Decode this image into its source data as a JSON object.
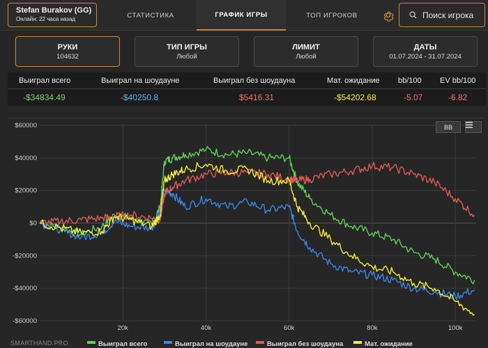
{
  "profile": {
    "name": "Stefan Burakov (GG)",
    "online": "Онлайн: 22 часа назад"
  },
  "tabs": [
    {
      "label": "СТАТИСТИКА",
      "active": false
    },
    {
      "label": "ГРАФИК ИГРЫ",
      "active": true
    },
    {
      "label": "ТОП ИГРОКОВ",
      "active": false
    }
  ],
  "search": {
    "label": "Поиск игрока"
  },
  "filters": [
    {
      "title": "РУКИ",
      "value": "104632"
    },
    {
      "title": "ТИП ИГРЫ",
      "value": "Любой"
    },
    {
      "title": "ЛИМИТ",
      "value": "Любой"
    },
    {
      "title": "ДАТЫ",
      "value": "01.07.2024 - 31.07.2024"
    }
  ],
  "stats": {
    "headers": [
      "Выиграл всего",
      "Выиграл на шоудауне",
      "Выиграл без шоудауна",
      "Мат. ожидание",
      "bb/100",
      "EV bb/100"
    ],
    "values": [
      "-$34834.49",
      "-$40250.8",
      "$5416.31",
      "-$54202.68",
      "-5.07",
      "-6.82"
    ],
    "colors": [
      "#7fd36a",
      "#5ab0ff",
      "#ff6b6b",
      "#f6ee4a",
      "#ff6b6b",
      "#ff6b6b"
    ]
  },
  "chart_buttons": {
    "bb": "BB",
    "menu": "menu-icon"
  },
  "watermark": "SMARTHAND.PRO",
  "chart_data": {
    "type": "line",
    "xlim": [
      0,
      105000
    ],
    "ylim": [
      -60000,
      60000
    ],
    "x_ticks": [
      "20k",
      "40k",
      "60k",
      "80k",
      "100k"
    ],
    "x_tick_values": [
      20000,
      40000,
      60000,
      80000,
      100000
    ],
    "y_ticks": [
      "$60000",
      "$40000",
      "$20000",
      "$0",
      "-$20000",
      "-$40000",
      "-$60000"
    ],
    "y_tick_values": [
      60000,
      40000,
      20000,
      0,
      -20000,
      -40000,
      -60000
    ],
    "grid": true,
    "legend_position": "bottom",
    "x": [
      0,
      5000,
      10000,
      15000,
      18000,
      22000,
      27000,
      29000,
      30000,
      32000,
      35000,
      40000,
      45000,
      50000,
      55000,
      60000,
      62000,
      65000,
      70000,
      75000,
      80000,
      85000,
      90000,
      95000,
      100000,
      104600
    ],
    "series": [
      {
        "name": "Выиграл всего",
        "color": "#5ed05a",
        "values": [
          0,
          -3000,
          -7000,
          -2000,
          5000,
          3000,
          -1000,
          10000,
          38000,
          40000,
          42000,
          45000,
          42000,
          43000,
          40000,
          40000,
          25000,
          15000,
          5000,
          -2000,
          -6000,
          -10000,
          -18000,
          -22000,
          -30000,
          -35000
        ]
      },
      {
        "name": "Выиграл на шоудауне",
        "color": "#3a86e8",
        "values": [
          0,
          -4000,
          -9000,
          -6000,
          1000,
          -2000,
          -3000,
          8000,
          20000,
          18000,
          10000,
          15000,
          10000,
          13000,
          8000,
          10000,
          -5000,
          -15000,
          -25000,
          -30000,
          -32000,
          -35000,
          -40000,
          -42000,
          -45000,
          -41000
        ]
      },
      {
        "name": "Выиграл без шоудауна",
        "color": "#e05a52",
        "values": [
          0,
          1000,
          2000,
          3000,
          4000,
          5000,
          3000,
          2000,
          18000,
          22000,
          26000,
          30000,
          31000,
          31000,
          30000,
          27000,
          26000,
          27000,
          30000,
          32000,
          35000,
          34000,
          30000,
          25000,
          15000,
          5000
        ]
      },
      {
        "name": "Мат. ожидание",
        "color": "#f2ee3a",
        "values": [
          0,
          -3000,
          -6000,
          -5000,
          4000,
          2000,
          -2000,
          5000,
          26000,
          30000,
          33000,
          36000,
          32000,
          33000,
          26000,
          26000,
          10000,
          0,
          -10000,
          -20000,
          -27000,
          -30000,
          -37000,
          -40000,
          -48000,
          -56000
        ]
      }
    ]
  }
}
